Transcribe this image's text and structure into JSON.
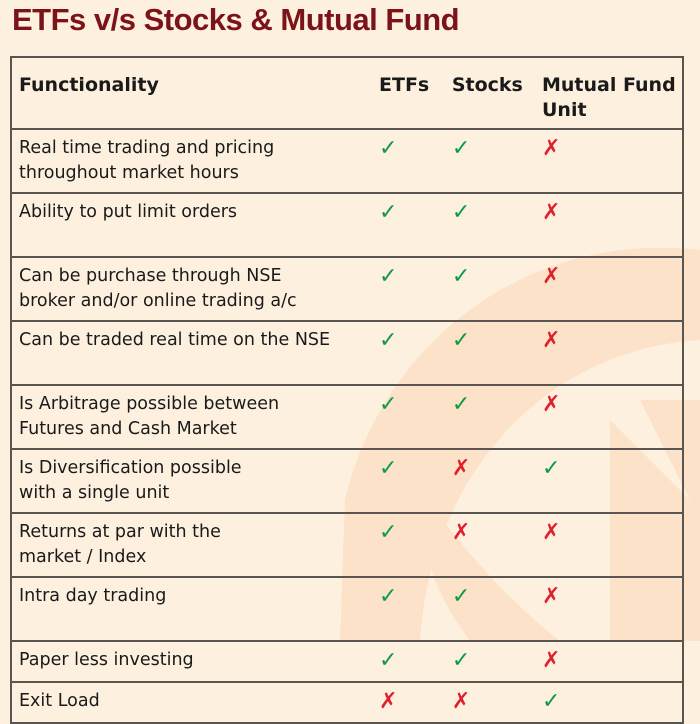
{
  "title": "ETFs v/s Stocks & Mutual Fund",
  "colors": {
    "title": "#7b1419",
    "yes": "#0f9a45",
    "no": "#e01f2a",
    "background": "#fdf0df"
  },
  "symbols": {
    "yes": "✓",
    "no": "✗"
  },
  "table": {
    "headers": [
      "Functionality",
      "ETFs",
      "Stocks",
      "Mutual Fund Unit"
    ],
    "rows": [
      {
        "label": "Real time trading and pricing throughout market hours",
        "etfs": "✓",
        "stocks": "✓",
        "mf": "✗"
      },
      {
        "label": "Ability to put limit orders",
        "etfs": "✓",
        "stocks": "✓",
        "mf": "✗"
      },
      {
        "label": "Can be purchase through NSE broker and/or online trading a/c",
        "etfs": "✓",
        "stocks": "✓",
        "mf": "✗"
      },
      {
        "label": "Can be traded real time on the NSE",
        "etfs": "✓",
        "stocks": "✓",
        "mf": "✗"
      },
      {
        "label": "Is Arbitrage possible between Futures and Cash Market",
        "etfs": "✓",
        "stocks": "✓",
        "mf": "✗"
      },
      {
        "label": "Is Diversification possible with a single unit",
        "etfs": "✓",
        "stocks": "✗",
        "mf": "✓"
      },
      {
        "label": "Returns at par with the market / Index",
        "etfs": "✓",
        "stocks": "✗",
        "mf": "✗"
      },
      {
        "label": "Intra day trading",
        "etfs": "✓",
        "stocks": "✓",
        "mf": "✗"
      },
      {
        "label": "Paper less investing",
        "etfs": "✓",
        "stocks": "✓",
        "mf": "✗"
      },
      {
        "label": "Exit Load",
        "etfs": "✗",
        "stocks": "✗",
        "mf": "✓"
      }
    ]
  }
}
